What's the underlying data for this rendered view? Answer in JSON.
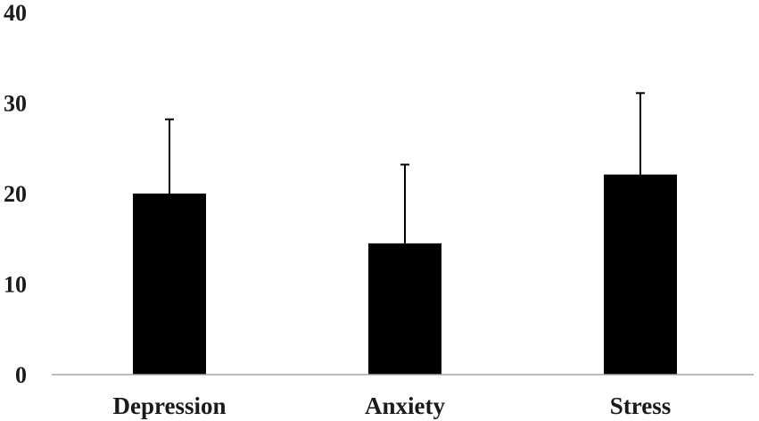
{
  "chart_data": {
    "type": "bar",
    "title": "",
    "xlabel": "",
    "ylabel": "",
    "categories": [
      "Depression",
      "Anxiety",
      "Stress"
    ],
    "values": [
      20,
      14.5,
      22.1
    ],
    "error_upper": [
      8.2,
      8.7,
      9.0
    ],
    "ylim": [
      0,
      40
    ],
    "yticks": [
      "0",
      "10",
      "20",
      "30",
      "40"
    ],
    "grid": false,
    "legend": "none",
    "bar_color": "#000000",
    "axis_color": "#a6a6a6",
    "error_bar_color": "#000000"
  }
}
